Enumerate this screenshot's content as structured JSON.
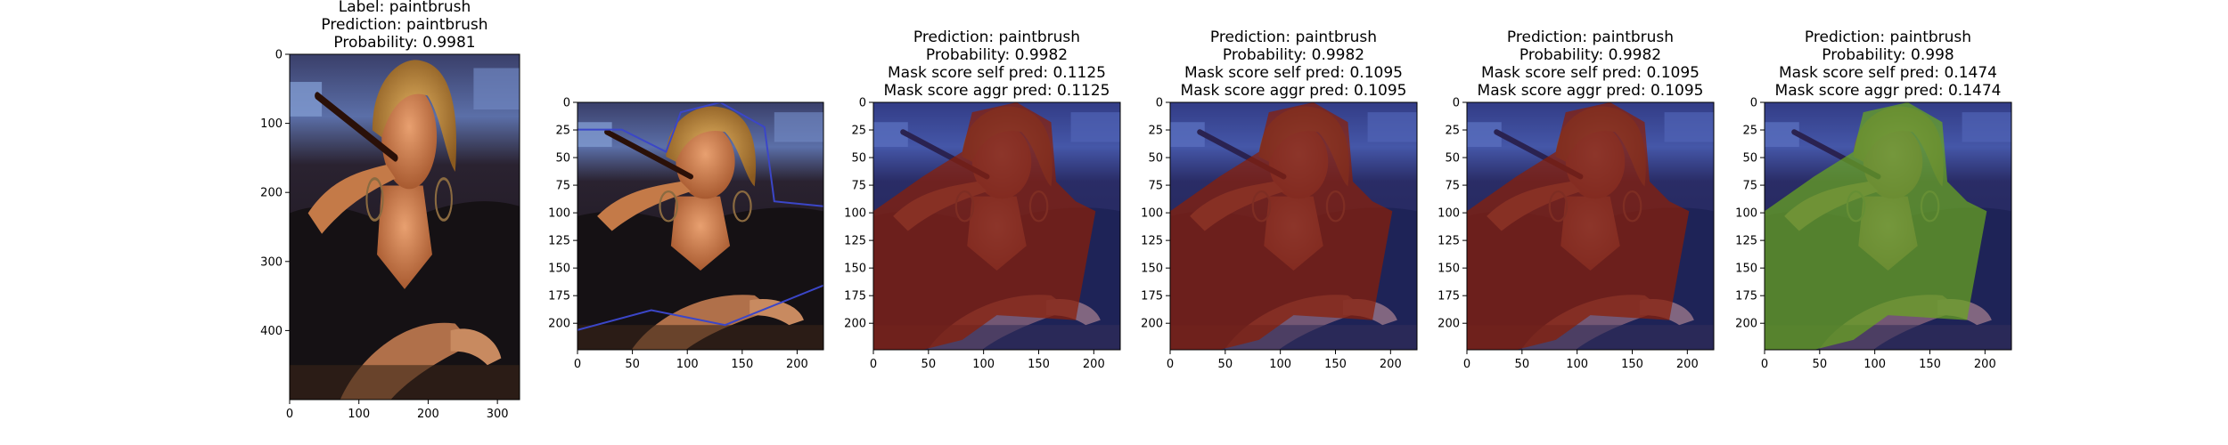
{
  "chart_data": [
    {
      "type": "image",
      "title_lines": [
        "Label: paintbrush",
        "Prediction: paintbrush",
        "Probability: 0.9981"
      ],
      "xlim": [
        0,
        332
      ],
      "ylim": [
        0,
        500
      ],
      "xticks": [
        0,
        100,
        200,
        300
      ],
      "yticks": [
        0,
        100,
        200,
        300,
        400
      ],
      "image_kind": "photo",
      "overlay_color": null
    },
    {
      "type": "image",
      "title_lines": [],
      "xlim": [
        0,
        224
      ],
      "ylim": [
        0,
        224
      ],
      "xticks": [
        0,
        50,
        100,
        150,
        200
      ],
      "yticks": [
        0,
        25,
        50,
        75,
        100,
        125,
        150,
        175,
        200
      ],
      "image_kind": "photo-contour",
      "overlay_color": "#3b46c8"
    },
    {
      "type": "image",
      "title_lines": [
        "Prediction: paintbrush",
        "Probability: 0.9982",
        "Mask score self pred: 0.1125",
        "Mask score aggr pred: 0.1125"
      ],
      "xlim": [
        0,
        224
      ],
      "ylim": [
        0,
        224
      ],
      "xticks": [
        0,
        50,
        100,
        150,
        200
      ],
      "yticks": [
        0,
        25,
        50,
        75,
        100,
        125,
        150,
        175,
        200
      ],
      "image_kind": "mask-overlay",
      "overlay_color": "#8b1f06"
    },
    {
      "type": "image",
      "title_lines": [
        "Prediction: paintbrush",
        "Probability: 0.9982",
        "Mask score self pred: 0.1095",
        "Mask score aggr pred: 0.1095"
      ],
      "xlim": [
        0,
        224
      ],
      "ylim": [
        0,
        224
      ],
      "xticks": [
        0,
        50,
        100,
        150,
        200
      ],
      "yticks": [
        0,
        25,
        50,
        75,
        100,
        125,
        150,
        175,
        200
      ],
      "image_kind": "mask-overlay",
      "overlay_color": "#8b1f06"
    },
    {
      "type": "image",
      "title_lines": [
        "Prediction: paintbrush",
        "Probability: 0.9982",
        "Mask score self pred: 0.1095",
        "Mask score aggr pred: 0.1095"
      ],
      "xlim": [
        0,
        224
      ],
      "ylim": [
        0,
        224
      ],
      "xticks": [
        0,
        50,
        100,
        150,
        200
      ],
      "yticks": [
        0,
        25,
        50,
        75,
        100,
        125,
        150,
        175,
        200
      ],
      "image_kind": "mask-overlay",
      "overlay_color": "#8b1f06"
    },
    {
      "type": "image",
      "title_lines": [
        "Prediction: paintbrush",
        "Probability: 0.998",
        "Mask score self pred: 0.1474",
        "Mask score aggr pred: 0.1474"
      ],
      "xlim": [
        0,
        224
      ],
      "ylim": [
        0,
        224
      ],
      "xticks": [
        0,
        50,
        100,
        150,
        200
      ],
      "yticks": [
        0,
        25,
        50,
        75,
        100,
        125,
        150,
        175,
        200
      ],
      "image_kind": "mask-overlay",
      "overlay_color": "#6aa61e"
    }
  ]
}
